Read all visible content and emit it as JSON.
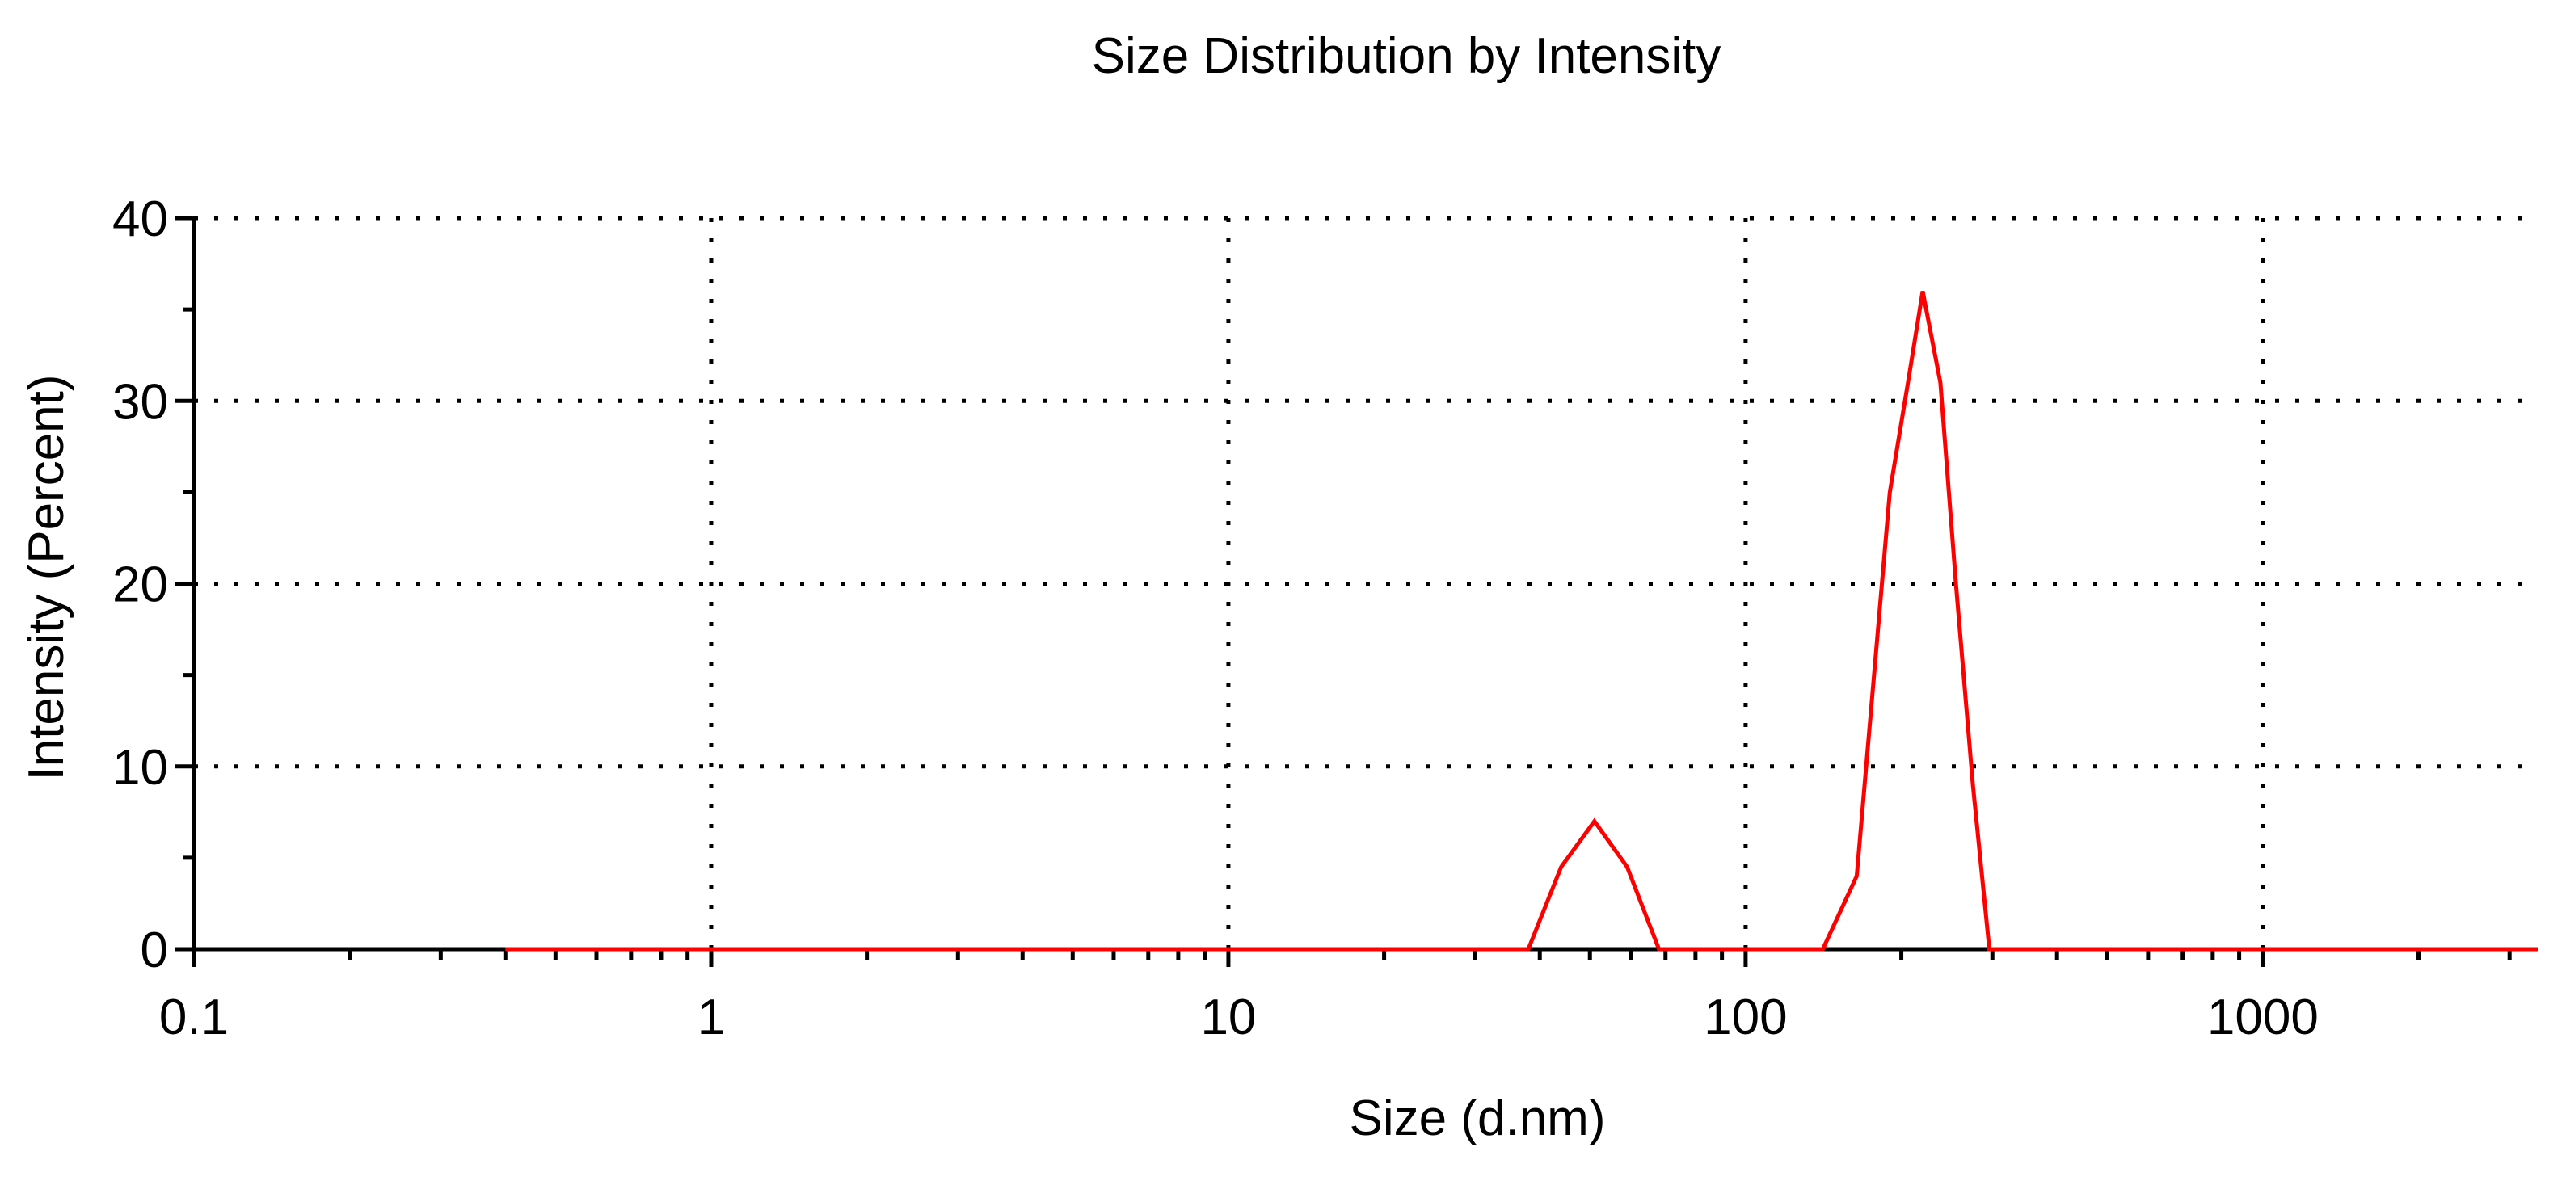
{
  "chart_data": {
    "type": "line",
    "title": "Size Distribution by Intensity",
    "xlabel": "Size (d.nm)",
    "ylabel": "Intensity (Percent)",
    "x_scale": "log",
    "xlim": [
      0.1,
      3400
    ],
    "ylim": [
      0,
      40
    ],
    "x_ticks": [
      0.1,
      1,
      10,
      100,
      1000
    ],
    "x_tick_labels": [
      "0.1",
      "1",
      "10",
      "100",
      "1000"
    ],
    "y_ticks": [
      0,
      10,
      20,
      30,
      40
    ],
    "y_tick_labels": [
      "0",
      "10",
      "20",
      "30",
      "40"
    ],
    "grid": true,
    "series": [
      {
        "color": "#ff0000",
        "x": [
          0.4,
          1,
          10,
          38,
          44,
          51,
          59,
          68,
          100,
          141,
          164,
          190,
          206,
          220,
          238,
          255,
          275,
          296,
          1000,
          3400
        ],
        "y": [
          0,
          0,
          0,
          0,
          4.5,
          7,
          4.5,
          0,
          0,
          0,
          4,
          25,
          31,
          36,
          31,
          20,
          9,
          0,
          0,
          0
        ]
      }
    ]
  }
}
